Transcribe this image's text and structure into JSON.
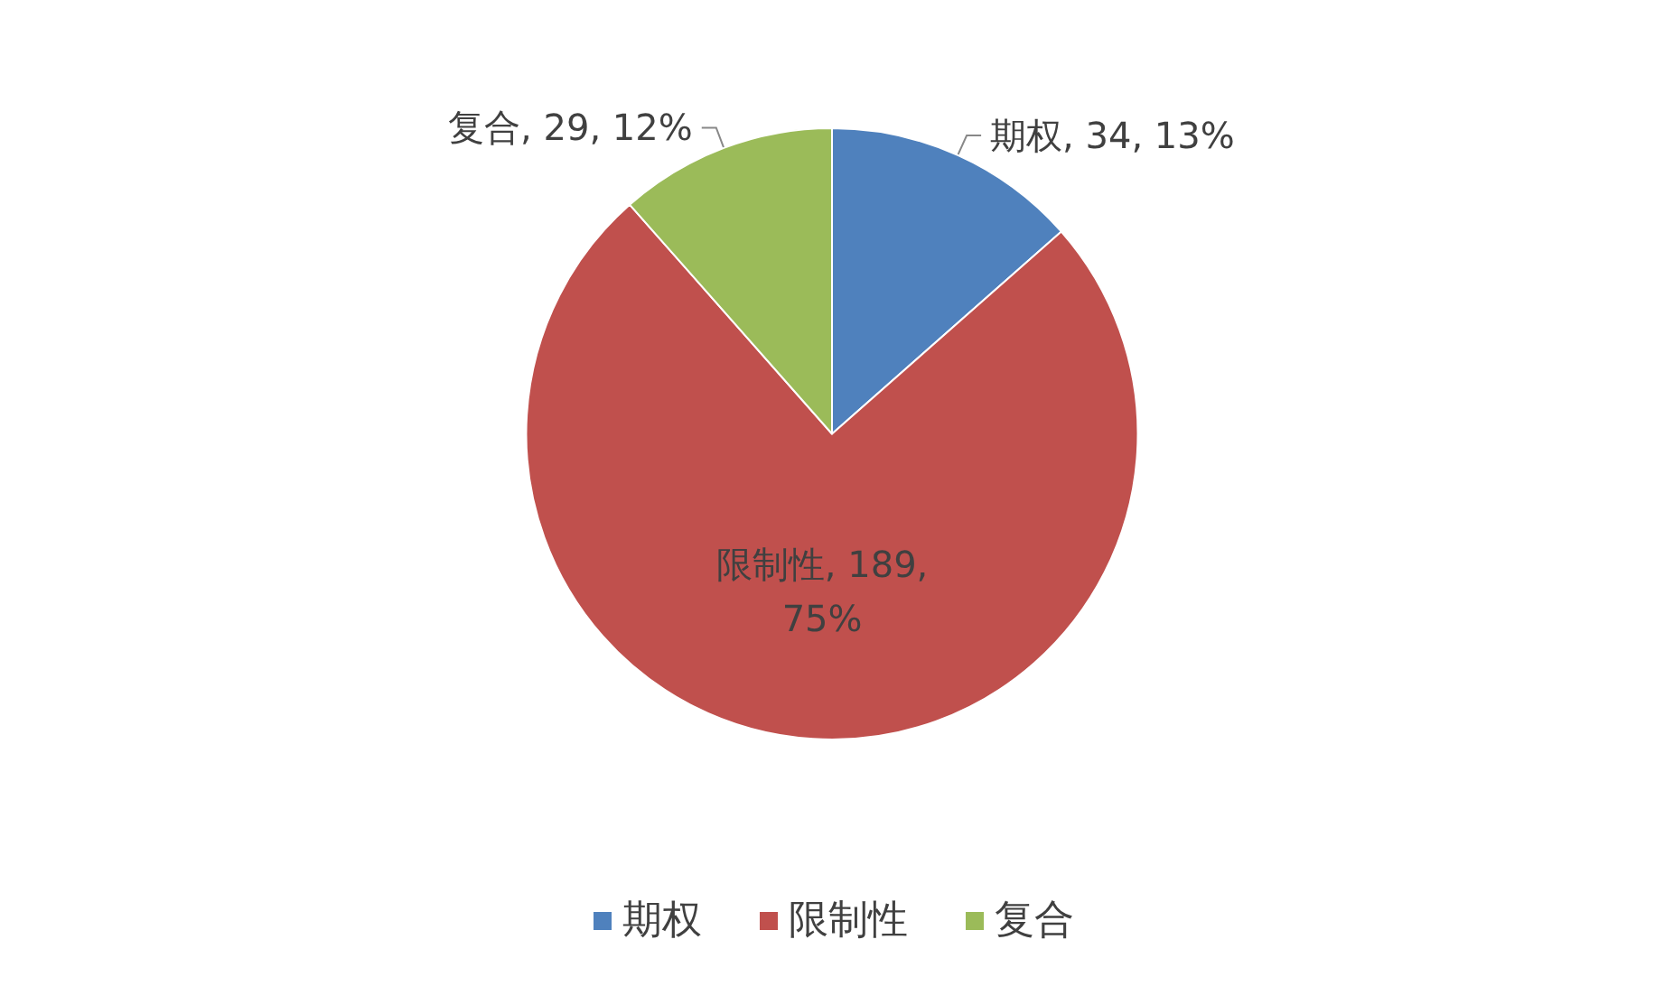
{
  "chart_data": {
    "type": "pie",
    "categories": [
      "期权",
      "限制性",
      "复合"
    ],
    "values": [
      34,
      189,
      29
    ],
    "colors": [
      "#4f81bd",
      "#c0504d",
      "#9bbb59"
    ],
    "value_labels": [
      "期权, 34, 13%",
      "限制性, 189,\n75%",
      "复合, 29, 12%"
    ],
    "legend": "bottom"
  }
}
